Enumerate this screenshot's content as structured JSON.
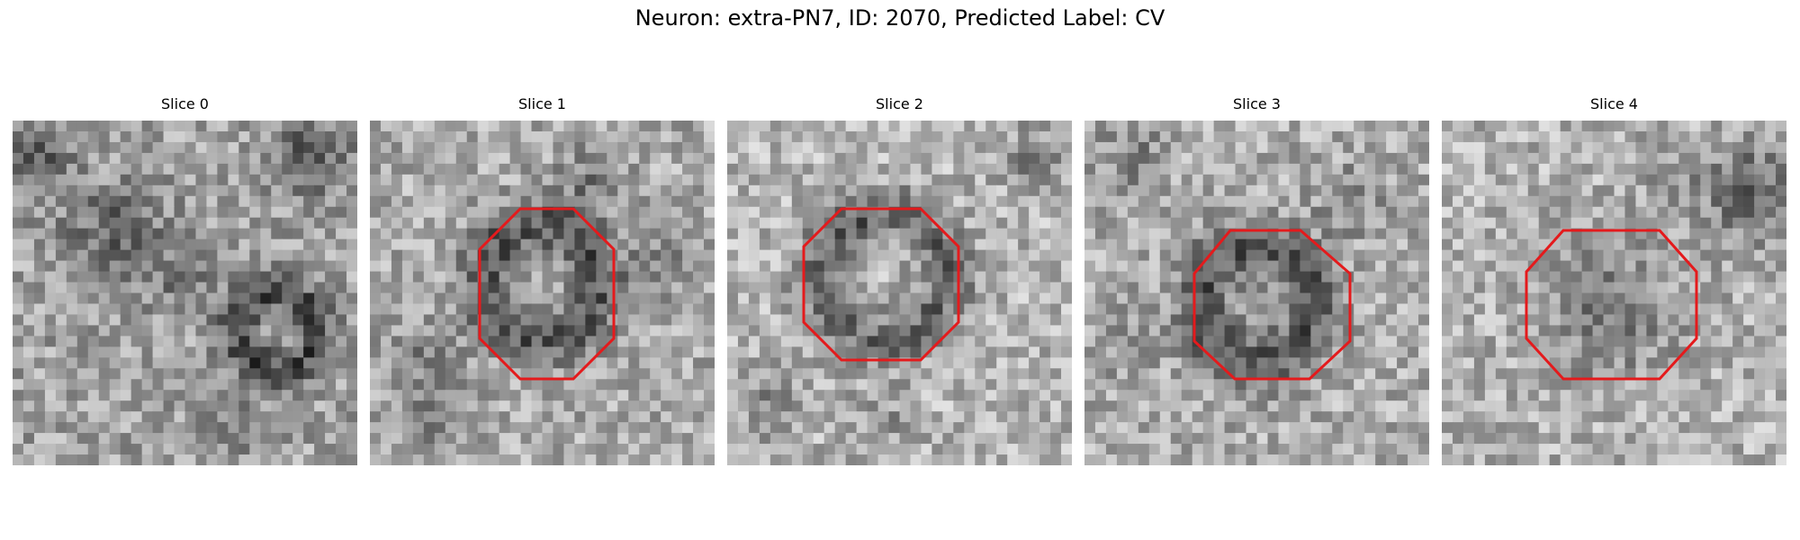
{
  "figure": {
    "title": "Neuron: extra-PN7, ID: 2070, Predicted Label: CV",
    "outline_color": "#e41a1c"
  },
  "slices": [
    {
      "title": "Slice 0",
      "roi_shown": false
    },
    {
      "title": "Slice 1",
      "roi_shown": true
    },
    {
      "title": "Slice 2",
      "roi_shown": true
    },
    {
      "title": "Slice 3",
      "roi_shown": true
    },
    {
      "title": "Slice 4",
      "roi_shown": true
    }
  ]
}
